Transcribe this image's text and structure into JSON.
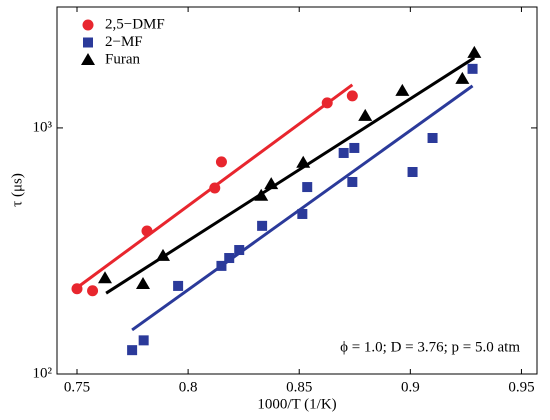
{
  "chart_data": {
    "type": "scatter",
    "xlabel": "1000/T (1/K)",
    "ylabel": "τ (μs)",
    "annotation": "ϕ = 1.0; D = 3.76; p = 5.0 atm",
    "log_y": true,
    "legend": "upper left",
    "grid": false,
    "xlim": [
      0.741,
      0.957
    ],
    "xticks": [
      0.75,
      0.8,
      0.85,
      0.9,
      0.95
    ],
    "ylim": [
      100,
      3100
    ],
    "yticks": [
      {
        "value": 100,
        "label": "10²"
      },
      {
        "value": 1000,
        "label": "10³"
      }
    ],
    "series": [
      {
        "name": "2,5−DMF",
        "color": "#e8262e",
        "marker": "circle",
        "x": [
          0.75,
          0.757,
          0.7815,
          0.812,
          0.815,
          0.8626,
          0.8739
        ],
        "values": [
          222,
          218,
          381,
          570,
          728,
          1264,
          1349
        ],
        "fit": {
          "x": [
            0.7505,
            0.8739
          ],
          "values": [
            226,
            1497
          ]
        }
      },
      {
        "name": "2−MF",
        "color": "#2b3a9a",
        "marker": "square",
        "x": [
          0.7748,
          0.78,
          0.7955,
          0.815,
          0.8185,
          0.823,
          0.8333,
          0.8514,
          0.8536,
          0.87,
          0.8748,
          0.8739,
          0.901,
          0.91,
          0.928
        ],
        "values": [
          125,
          137,
          228,
          275,
          296,
          319,
          400,
          447,
          575,
          791,
          829,
          603,
          662,
          910,
          1738
        ],
        "fit": {
          "x": [
            0.7748,
            0.928
          ],
          "values": [
            151,
            1482
          ]
        }
      },
      {
        "name": "Furan",
        "color": "#000000",
        "marker": "triangle",
        "x": [
          0.7626,
          0.7797,
          0.7887,
          0.8329,
          0.8374,
          0.8518,
          0.8797,
          0.8964,
          0.9234,
          0.9288
        ],
        "values": [
          245,
          232,
          302,
          530,
          591,
          722,
          1119,
          1414,
          1582,
          2018
        ],
        "fit": {
          "x": [
            0.7631,
            0.9288
          ],
          "values": [
            213,
            1927
          ]
        }
      }
    ]
  }
}
